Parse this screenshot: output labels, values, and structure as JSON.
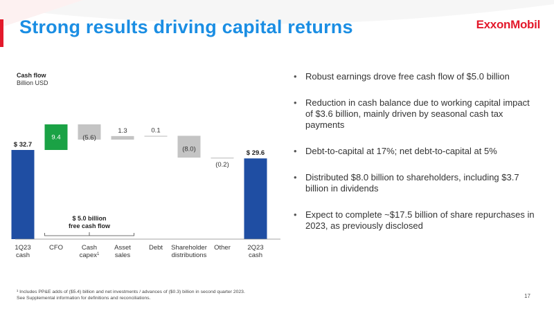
{
  "slide": {
    "title": "Strong results driving capital returns",
    "logo": "ExxonMobil",
    "page_number": "17",
    "footnote_lines": [
      "¹ Includes PP&E adds of ($5.4) billion and net investments / advances of ($0.3) billion in second quarter 2023.",
      "See Supplemental information for definitions and reconciliations."
    ]
  },
  "bullets": [
    "Robust earnings drove free cash flow of $5.0 billion",
    "Reduction in cash balance due to working capital impact of $3.6 billion, mainly driven by seasonal cash tax payments",
    "Debt-to-capital at 17%; net debt-to-capital at 5%",
    "Distributed $8.0 billion to shareholders, including $3.7 billion in dividends",
    "Expect to complete ~$17.5 billion of share repurchases in 2023, as previously disclosed"
  ],
  "chart_data": {
    "type": "waterfall",
    "title": "Cash flow",
    "subtitle": "Billion USD",
    "steps": [
      {
        "category": "1Q23 cash",
        "label_lines": [
          "1Q23",
          "cash"
        ],
        "value": 32.7,
        "kind": "total",
        "data_label": "$ 32.7",
        "color": "#1f4ea3"
      },
      {
        "category": "CFO",
        "label_lines": [
          "CFO"
        ],
        "value": 9.4,
        "kind": "delta",
        "data_label": "9.4",
        "color": "#1aa245"
      },
      {
        "category": "Cash capex",
        "label_lines": [
          "Cash",
          "capex"
        ],
        "footnote_marker": "1",
        "value": -5.6,
        "kind": "delta",
        "data_label": "(5.6)",
        "color": "#c4c4c4"
      },
      {
        "category": "Asset sales",
        "label_lines": [
          "Asset",
          "sales"
        ],
        "value": 1.3,
        "kind": "delta",
        "data_label": "1.3",
        "color": "#c4c4c4"
      },
      {
        "category": "Debt",
        "label_lines": [
          "Debt"
        ],
        "value": 0.1,
        "kind": "delta",
        "data_label": "0.1",
        "color": "#c4c4c4"
      },
      {
        "category": "Shareholder distributions",
        "label_lines": [
          "Shareholder",
          "distributions"
        ],
        "value": -8.0,
        "kind": "delta",
        "data_label": "(8.0)",
        "color": "#c4c4c4"
      },
      {
        "category": "Other",
        "label_lines": [
          "Other"
        ],
        "value": -0.2,
        "kind": "delta",
        "data_label": "(0.2)",
        "color": "#c4c4c4"
      },
      {
        "category": "2Q23 cash",
        "label_lines": [
          "2Q23",
          "cash"
        ],
        "value": 29.6,
        "kind": "total",
        "data_label": "$ 29.6",
        "color": "#1f4ea3"
      }
    ],
    "annotation": {
      "lines": [
        "$ 5.0 billion",
        "free cash flow"
      ],
      "from_category": "CFO",
      "to_category": "Asset sales"
    },
    "ylim": [
      0,
      45
    ],
    "grid": false,
    "legend": "none"
  }
}
